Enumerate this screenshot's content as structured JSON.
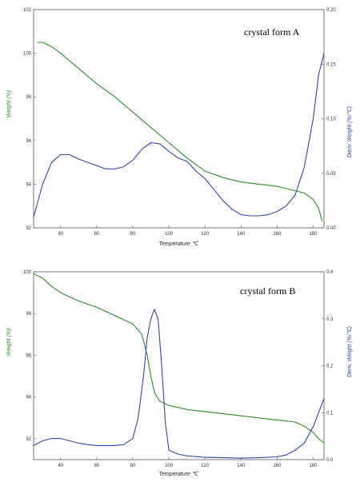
{
  "colors": {
    "weight": "#2e8b2e",
    "deriv": "#2f4aa8",
    "frame": "#555555"
  },
  "chart_data": [
    {
      "type": "line",
      "title": "",
      "annotation": "crystal form A",
      "xlabel": "Temperature ℃",
      "ylabel_left": "Weight (%)",
      "ylabel_right": "Deriv. Weight (%/℃)",
      "xlim": [
        25,
        186
      ],
      "ylim_left": [
        92,
        102
      ],
      "ylim_right": [
        0.0,
        0.2
      ],
      "x_ticks": [
        "40",
        "60",
        "80",
        "100",
        "120",
        "140",
        "160",
        "180"
      ],
      "y_left_ticks": [
        "92",
        "94",
        "96",
        "98",
        "100",
        "102"
      ],
      "y_right_ticks": [
        "0.00",
        "0.05",
        "0.10",
        "0.15",
        "0.20"
      ],
      "series": [
        {
          "name": "Weight (%)",
          "axis": "left",
          "x": [
            27,
            30,
            35,
            40,
            50,
            60,
            70,
            80,
            90,
            100,
            110,
            120,
            130,
            140,
            150,
            160,
            165,
            170,
            175,
            180,
            183,
            185
          ],
          "y": [
            100.5,
            100.5,
            100.3,
            100.0,
            99.3,
            98.6,
            98.0,
            97.3,
            96.6,
            95.9,
            95.2,
            94.6,
            94.3,
            94.1,
            94.0,
            93.9,
            93.8,
            93.7,
            93.6,
            93.3,
            92.9,
            92.3
          ]
        },
        {
          "name": "Deriv. Weight (%/℃)",
          "axis": "right",
          "x": [
            25,
            30,
            35,
            40,
            45,
            50,
            55,
            60,
            65,
            70,
            75,
            80,
            85,
            90,
            95,
            100,
            105,
            110,
            115,
            120,
            125,
            130,
            135,
            140,
            145,
            150,
            155,
            160,
            165,
            170,
            175,
            180,
            183,
            186
          ],
          "y": [
            0.01,
            0.04,
            0.06,
            0.067,
            0.067,
            0.063,
            0.06,
            0.057,
            0.054,
            0.054,
            0.056,
            0.062,
            0.072,
            0.078,
            0.077,
            0.07,
            0.064,
            0.061,
            0.052,
            0.045,
            0.035,
            0.025,
            0.017,
            0.012,
            0.011,
            0.011,
            0.012,
            0.015,
            0.02,
            0.03,
            0.055,
            0.1,
            0.14,
            0.16
          ]
        }
      ]
    },
    {
      "type": "line",
      "title": "",
      "annotation": "crystal form B",
      "xlabel": "Temperature ℃",
      "ylabel_left": "Weight (%)",
      "ylabel_right": "Deriv. Weight (%/℃)",
      "xlim": [
        25,
        186
      ],
      "ylim_left": [
        91,
        100
      ],
      "ylim_right": [
        0.0,
        0.4
      ],
      "x_ticks": [
        "40",
        "60",
        "80",
        "100",
        "120",
        "140",
        "160",
        "180"
      ],
      "y_left_ticks": [
        "92",
        "94",
        "96",
        "98",
        "100"
      ],
      "y_right_ticks": [
        "0.0",
        "0.1",
        "0.2",
        "0.3",
        "0.4"
      ],
      "series": [
        {
          "name": "Weight (%)",
          "axis": "left",
          "x": [
            25,
            30,
            35,
            40,
            50,
            60,
            70,
            80,
            85,
            88,
            90,
            92,
            95,
            100,
            110,
            120,
            130,
            140,
            150,
            160,
            170,
            175,
            180,
            183,
            186
          ],
          "y": [
            99.9,
            99.7,
            99.3,
            99.0,
            98.6,
            98.3,
            97.9,
            97.5,
            97.0,
            96.0,
            95.0,
            94.2,
            93.8,
            93.6,
            93.4,
            93.3,
            93.2,
            93.1,
            93.0,
            92.9,
            92.8,
            92.6,
            92.3,
            92.0,
            91.8
          ]
        },
        {
          "name": "Deriv. Weight (%/℃)",
          "axis": "right",
          "x": [
            25,
            30,
            35,
            40,
            45,
            50,
            55,
            60,
            65,
            70,
            75,
            80,
            83,
            86,
            88,
            90,
            92,
            94,
            96,
            98,
            100,
            105,
            110,
            120,
            130,
            140,
            150,
            160,
            165,
            170,
            175,
            180,
            183,
            186
          ],
          "y": [
            0.03,
            0.04,
            0.045,
            0.045,
            0.04,
            0.035,
            0.032,
            0.03,
            0.03,
            0.03,
            0.032,
            0.045,
            0.09,
            0.18,
            0.26,
            0.3,
            0.32,
            0.3,
            0.2,
            0.08,
            0.02,
            0.012,
            0.008,
            0.005,
            0.004,
            0.003,
            0.004,
            0.006,
            0.01,
            0.02,
            0.035,
            0.07,
            0.1,
            0.13
          ]
        }
      ]
    }
  ]
}
